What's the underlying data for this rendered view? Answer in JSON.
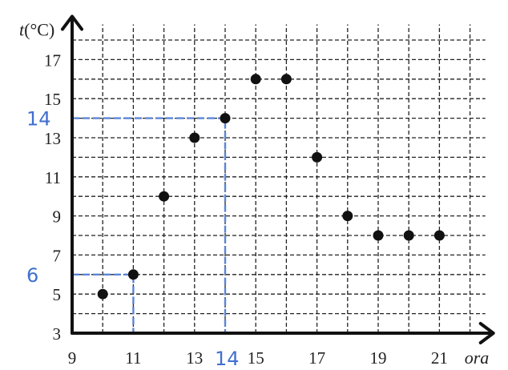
{
  "chart_data": {
    "type": "scatter",
    "title": "",
    "xlabel": "ora",
    "ylabel_prefix": "t",
    "ylabel_unit": "(°C)",
    "xlim": [
      9,
      22.5
    ],
    "ylim": [
      3,
      18.8
    ],
    "x_ticks": [
      {
        "value": 9,
        "label": "9"
      },
      {
        "value": 11,
        "label": "11"
      },
      {
        "value": 13,
        "label": "13"
      },
      {
        "value": 15,
        "label": "15"
      },
      {
        "value": 17,
        "label": "17"
      },
      {
        "value": 19,
        "label": "19"
      },
      {
        "value": 21,
        "label": "21"
      }
    ],
    "y_ticks": [
      {
        "value": 3,
        "label": "3"
      },
      {
        "value": 5,
        "label": "5"
      },
      {
        "value": 7,
        "label": "7"
      },
      {
        "value": 9,
        "label": "9"
      },
      {
        "value": 11,
        "label": "11"
      },
      {
        "value": 13,
        "label": "13"
      },
      {
        "value": 15,
        "label": "15"
      },
      {
        "value": 17,
        "label": "17"
      }
    ],
    "grid": true,
    "grid_x_step": 1,
    "grid_y_step": 1,
    "points": [
      {
        "x": 10,
        "y": 5
      },
      {
        "x": 11,
        "y": 6
      },
      {
        "x": 12,
        "y": 10
      },
      {
        "x": 13,
        "y": 13
      },
      {
        "x": 14,
        "y": 14
      },
      {
        "x": 15,
        "y": 16
      },
      {
        "x": 16,
        "y": 16
      },
      {
        "x": 17,
        "y": 12
      },
      {
        "x": 18,
        "y": 9
      },
      {
        "x": 19,
        "y": 8
      },
      {
        "x": 20,
        "y": 8
      },
      {
        "x": 21,
        "y": 8
      }
    ],
    "annotations": [
      {
        "x": 11,
        "y": 6,
        "x_label": "",
        "y_label": "6"
      },
      {
        "x": 14,
        "y": 14,
        "x_label": "14",
        "y_label": "14"
      }
    ],
    "colors": {
      "points": "#111111",
      "grid": "#222222",
      "axes": "#111111",
      "handwriting": "#3f6fd0"
    }
  }
}
